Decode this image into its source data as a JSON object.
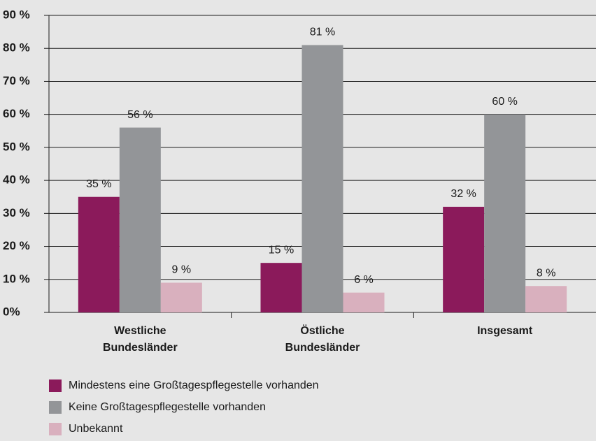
{
  "chart_data": {
    "type": "bar",
    "categories": [
      "Westliche Bundesländer",
      "Östliche Bundesländer",
      "Insgesamt"
    ],
    "series": [
      {
        "name": "Mindestens eine Großtagespflegestelle vorhanden",
        "color": "#8b1a5b",
        "values": [
          35,
          15,
          32
        ],
        "value_labels": [
          "35 %",
          "15 %",
          "32 %"
        ]
      },
      {
        "name": "Keine Großtagespflegestelle vorhanden",
        "color": "#939598",
        "values": [
          56,
          81,
          60
        ],
        "value_labels": [
          "56 %",
          "81 %",
          "60 %"
        ]
      },
      {
        "name": "Unbekannt",
        "color": "#d9b0be",
        "values": [
          9,
          6,
          8
        ],
        "value_labels": [
          "9 %",
          "6 %",
          "8 %"
        ]
      }
    ],
    "ylim": [
      0,
      90
    ],
    "yticks": [
      {
        "value": 0,
        "label": "0%"
      },
      {
        "value": 10,
        "label": "10 %"
      },
      {
        "value": 20,
        "label": "20 %"
      },
      {
        "value": 30,
        "label": "30 %"
      },
      {
        "value": 40,
        "label": "40 %"
      },
      {
        "value": 50,
        "label": "50 %"
      },
      {
        "value": 60,
        "label": "60 %"
      },
      {
        "value": 70,
        "label": "70 %"
      },
      {
        "value": 80,
        "label": "80 %"
      },
      {
        "value": 90,
        "label": "90 %"
      }
    ],
    "grid": true
  }
}
